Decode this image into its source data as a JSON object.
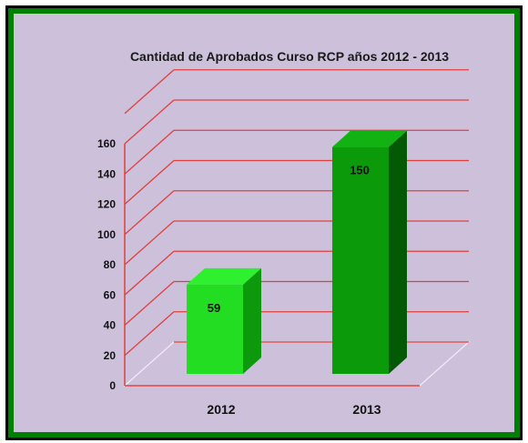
{
  "chart_data": {
    "type": "bar",
    "title": "Cantidad de Aprobados Curso RCP  años 2012 - 2013",
    "categories": [
      "2012",
      "2013"
    ],
    "values": [
      59,
      150
    ],
    "ylim": [
      0,
      160
    ],
    "yticks": [
      0,
      20,
      40,
      60,
      80,
      100,
      120,
      140,
      160
    ],
    "grid": true,
    "legend": "none",
    "style": "3d-column",
    "colors": {
      "background": "#ccc0da",
      "frame": "#008000",
      "gridline": "#e0403c",
      "bar_2012": "#22dd22",
      "bar_2013": "#0a9a0a"
    }
  }
}
